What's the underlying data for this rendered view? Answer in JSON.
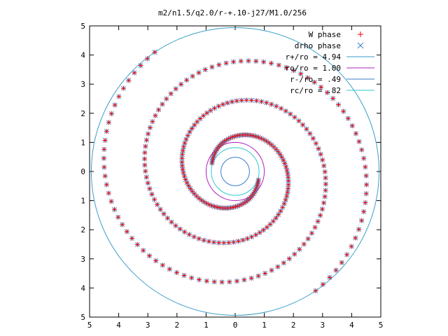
{
  "chart_data": {
    "type": "scatter",
    "title": "m2/n1.5/q2.0/r-+.10-j27/M1.0/256",
    "xlim": [
      -5,
      5
    ],
    "ylim": [
      -5,
      5
    ],
    "x_tick_labels": [
      "5",
      "4",
      "3",
      "2",
      "1",
      "0",
      "1",
      "2",
      "3",
      "4",
      "5"
    ],
    "y_tick_labels": [
      "5",
      "4",
      "3",
      "2",
      "1",
      "0",
      "1",
      "2",
      "3",
      "4",
      "5"
    ],
    "grid": false,
    "legend_position": "top-right",
    "legend": [
      {
        "label": "W phase",
        "kind": "marker",
        "marker": "+",
        "color": "#ff0000"
      },
      {
        "label": "drho phase",
        "kind": "marker",
        "marker": "x",
        "color": "#3b82c4"
      },
      {
        "label": "r+/ro = 4.94",
        "kind": "line",
        "color": "#3a9ec8"
      },
      {
        "label": "ro/ro = 1.00",
        "kind": "line",
        "color": "#b020c0"
      },
      {
        "label": "r-/ro = .49",
        "kind": "line",
        "color": "#3a7dc8"
      },
      {
        "label": "rc/ro = .82",
        "kind": "line",
        "color": "#30c8d0"
      }
    ],
    "circles": [
      {
        "name": "r+",
        "radius": 4.94,
        "color": "#3a9ec8"
      },
      {
        "name": "ro",
        "radius": 1.0,
        "color": "#b020c0"
      },
      {
        "name": "r-",
        "radius": 0.49,
        "color": "#3a7dc8"
      },
      {
        "name": "rc",
        "radius": 0.82,
        "color": "#30c8d0"
      }
    ],
    "spiral_arms": [
      {
        "name": "arm-1",
        "start_angle_deg": 160,
        "turns": 1.6,
        "r_start": 0.85,
        "r_end": 4.94
      },
      {
        "name": "arm-2",
        "start_angle_deg": 340,
        "turns": 1.6,
        "r_start": 0.85,
        "r_end": 4.94
      }
    ],
    "series": [
      {
        "name": "W phase",
        "marker": "+",
        "color": "#ff0000"
      },
      {
        "name": "drho phase",
        "marker": "x",
        "color": "#3b82c4"
      }
    ]
  }
}
